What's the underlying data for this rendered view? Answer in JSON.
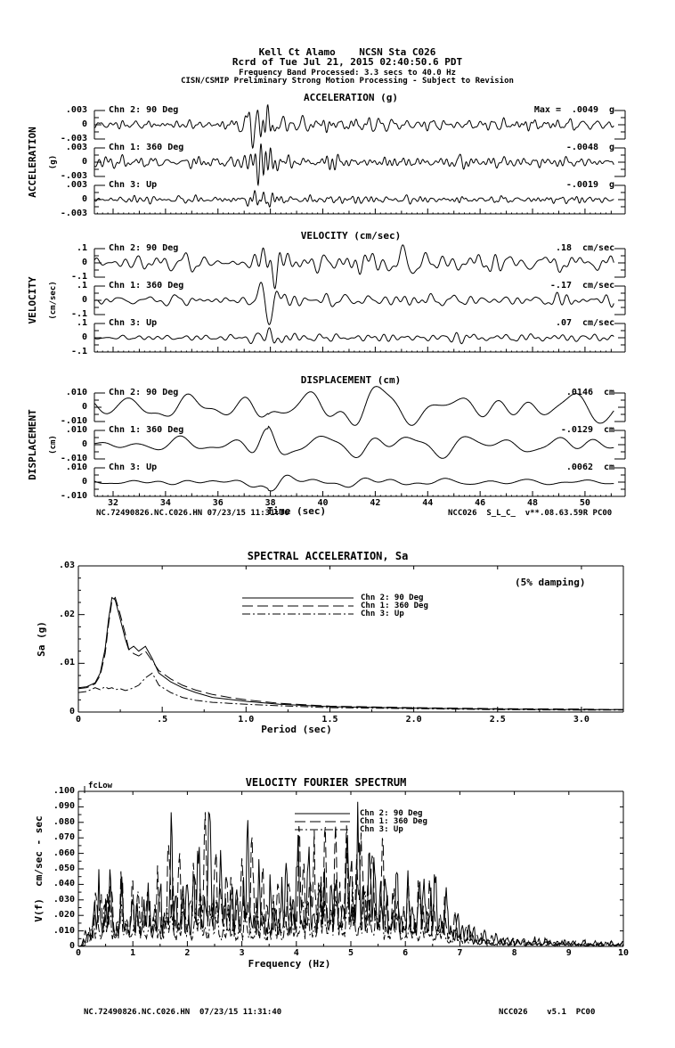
{
  "header": {
    "line1": "Kell Ct Alamo    NCSN Sta C026",
    "line2": "Rcrd of Tue Jul 21, 2015 02:40:50.6 PDT",
    "line3": "Frequency Band Processed: 3.3 secs to 40.0 Hz",
    "line4": "CISN/CSMIP Preliminary Strong Motion Processing - Subject to Revision"
  },
  "time_series": {
    "panels": [
      {
        "key": "acceleration",
        "title": "ACCELERATION (g)",
        "side_label": "ACCELERATION",
        "side_unit": "(g)",
        "scale_top": ".003",
        "scale_zero": "0",
        "scale_bottom": "-.003",
        "traces": [
          {
            "channel": "Chn 2: 90 Deg",
            "max_prefix": "Max =",
            "value": ".0049",
            "unit": "g"
          },
          {
            "channel": "Chn 1: 360 Deg",
            "value": "-.0048",
            "unit": "g"
          },
          {
            "channel": "Chn 3: Up",
            "value": "-.0019",
            "unit": "g"
          }
        ]
      },
      {
        "key": "velocity",
        "title": "VELOCITY (cm/sec)",
        "side_label": "VELOCITY",
        "side_unit": "(cm/sec)",
        "scale_top": ".1",
        "scale_zero": "0",
        "scale_bottom": "-.1",
        "traces": [
          {
            "channel": "Chn 2: 90 Deg",
            "value": ".18",
            "unit": "cm/sec"
          },
          {
            "channel": "Chn 1: 360 Deg",
            "value": "-.17",
            "unit": "cm/sec"
          },
          {
            "channel": "Chn 3: Up",
            "value": ".07",
            "unit": "cm/sec"
          }
        ]
      },
      {
        "key": "displacement",
        "title": "DISPLACEMENT (cm)",
        "side_label": "DISPLACEMENT",
        "side_unit": "(cm)",
        "scale_top": ".010",
        "scale_zero": "0",
        "scale_bottom": "-.010",
        "traces": [
          {
            "channel": "Chn 2: 90 Deg",
            "value": ".0146",
            "unit": "cm"
          },
          {
            "channel": "Chn 1: 360 Deg",
            "value": "-.0129",
            "unit": "cm"
          },
          {
            "channel": "Chn 3: Up",
            "value": ".0062",
            "unit": "cm"
          }
        ]
      }
    ],
    "time_axis": {
      "tick_labels": [
        "32",
        "34",
        "36",
        "38",
        "40",
        "42",
        "44",
        "46",
        "48",
        "50"
      ],
      "label": "Time (sec)"
    },
    "footer": {
      "left": "NC.72490826.NC.C026.HN 07/23/15 11:31:36",
      "right": "NCC026  S_L_C_  v**.08.63.59R PC00"
    }
  },
  "sa_plot": {
    "title": "SPECTRAL ACCELERATION, Sa",
    "damping_note": "(5% damping)",
    "ylabel": "Sa (g)",
    "xlabel": "Period (sec)",
    "y_tick_labels": [
      "0",
      ".01",
      ".02",
      ".03"
    ],
    "x_tick_labels": [
      "0",
      ".5",
      "1.0",
      "1.5",
      "2.0",
      "2.5",
      "3.0"
    ],
    "legend": [
      {
        "label": "Chn 2: 90 Deg",
        "style": "solid"
      },
      {
        "label": "Chn 1: 360 Deg",
        "style": "long-dash"
      },
      {
        "label": "Chn 3: Up",
        "style": "dash-dot"
      }
    ]
  },
  "fourier_plot": {
    "title": "VELOCITY FOURIER SPECTRUM",
    "ylabel": "V(f)  cm/sec - sec",
    "xlabel": "Frequency (Hz)",
    "fc_label": "fcLow",
    "y_tick_labels": [
      "0",
      ".010",
      ".020",
      ".030",
      ".040",
      ".050",
      ".060",
      ".070",
      ".080",
      ".090",
      ".100"
    ],
    "x_tick_labels": [
      "0",
      "1",
      "2",
      "3",
      "4",
      "5",
      "6",
      "7",
      "8",
      "9",
      "10"
    ],
    "legend": [
      {
        "label": "Chn 2: 90 Deg",
        "style": "solid"
      },
      {
        "label": "Chn 1: 360 Deg",
        "style": "long-dash"
      },
      {
        "label": "Chn 3: Up",
        "style": "dash-dot"
      }
    ]
  },
  "page_footer": {
    "left": "NC.72490826.NC.C026.HN  07/23/15 11:31:40",
    "right": "NCC026    v5.1  PC00"
  },
  "colors": {
    "ink": "#000000",
    "background": "#ffffff"
  },
  "chart_data": [
    {
      "id": "acceleration_traces",
      "type": "line",
      "title": "ACCELERATION (g)",
      "xlabel": "Time (sec)",
      "xlim": [
        31.3,
        51.1
      ],
      "per_trace_ylim": [
        -0.003,
        0.003
      ],
      "units": "g",
      "burst": {
        "center": 37.7,
        "width": 0.55,
        "baseline": 0.3,
        "coda": 0.15,
        "coda_tau": 5
      },
      "freq_band_display_hz": [
        1.2,
        6.5
      ],
      "series": [
        {
          "name": "Chn 2: 90 Deg",
          "peak": 0.0049
        },
        {
          "name": "Chn 1: 360 Deg",
          "peak": -0.0048
        },
        {
          "name": "Chn 3: Up",
          "peak": -0.0019
        }
      ]
    },
    {
      "id": "velocity_traces",
      "type": "line",
      "title": "VELOCITY (cm/sec)",
      "xlabel": "Time (sec)",
      "xlim": [
        31.3,
        51.1
      ],
      "per_trace_ylim": [
        -0.1,
        0.1
      ],
      "units": "cm/sec",
      "burst": {
        "center": 37.8,
        "width": 0.6,
        "baseline": 0.33,
        "coda": 0.2,
        "coda_tau": 6
      },
      "freq_band_display_hz": [
        0.7,
        3.5
      ],
      "series": [
        {
          "name": "Chn 2: 90 Deg",
          "peak": 0.18
        },
        {
          "name": "Chn 1: 360 Deg",
          "peak": -0.17
        },
        {
          "name": "Chn 3: Up",
          "peak": 0.07
        }
      ]
    },
    {
      "id": "displacement_traces",
      "type": "line",
      "title": "DISPLACEMENT (cm)",
      "xlabel": "Time (sec)",
      "xlim": [
        31.3,
        51.1
      ],
      "per_trace_ylim": [
        -0.01,
        0.01
      ],
      "units": "cm",
      "burst": {
        "center": 37.9,
        "width": 0.8,
        "baseline": 0.35,
        "coda": 0.25,
        "coda_tau": 7
      },
      "freq_band_display_hz": [
        0.25,
        1.1
      ],
      "series": [
        {
          "name": "Chn 2: 90 Deg",
          "peak": 0.0146
        },
        {
          "name": "Chn 1: 360 Deg",
          "peak": -0.0129
        },
        {
          "name": "Chn 3: Up",
          "peak": 0.0062
        }
      ]
    },
    {
      "id": "spectral_acceleration",
      "type": "line",
      "title": "SPECTRAL ACCELERATION, Sa",
      "xlabel": "Period (sec)",
      "ylabel": "Sa (g)",
      "xlim": [
        0,
        3.25
      ],
      "ylim": [
        0,
        0.03
      ],
      "damping": "5%",
      "x": [
        0,
        0.05,
        0.1,
        0.13,
        0.16,
        0.18,
        0.2,
        0.22,
        0.25,
        0.28,
        0.3,
        0.33,
        0.36,
        0.4,
        0.44,
        0.48,
        0.55,
        0.62,
        0.7,
        0.8,
        0.9,
        1.0,
        1.2,
        1.5,
        2.0,
        2.5,
        3.0,
        3.25
      ],
      "series": [
        {
          "name": "Chn 2: 90 Deg",
          "style": "solid",
          "values": [
            0.005,
            0.0052,
            0.006,
            0.008,
            0.013,
            0.019,
            0.0235,
            0.023,
            0.019,
            0.015,
            0.0128,
            0.0135,
            0.0125,
            0.0135,
            0.011,
            0.008,
            0.0062,
            0.005,
            0.004,
            0.003,
            0.0026,
            0.0022,
            0.0016,
            0.0011,
            0.0008,
            0.0006,
            0.0005,
            0.0005
          ]
        },
        {
          "name": "Chn 1: 360 Deg",
          "style": "long-dash",
          "values": [
            0.0048,
            0.005,
            0.0058,
            0.0075,
            0.012,
            0.018,
            0.0228,
            0.0235,
            0.02,
            0.016,
            0.013,
            0.012,
            0.0115,
            0.0125,
            0.0105,
            0.0085,
            0.0068,
            0.0055,
            0.0045,
            0.0036,
            0.003,
            0.0025,
            0.0018,
            0.0012,
            0.0009,
            0.0007,
            0.0006,
            0.0005
          ]
        },
        {
          "name": "Chn 3: Up",
          "style": "dash-dot",
          "values": [
            0.004,
            0.0042,
            0.005,
            0.0046,
            0.0052,
            0.0048,
            0.005,
            0.0046,
            0.0048,
            0.0044,
            0.0046,
            0.005,
            0.0055,
            0.007,
            0.008,
            0.0055,
            0.004,
            0.003,
            0.0024,
            0.002,
            0.0018,
            0.0016,
            0.0013,
            0.0009,
            0.0007,
            0.0005,
            0.0004,
            0.0004
          ]
        }
      ]
    },
    {
      "id": "velocity_fourier_spectrum",
      "type": "line",
      "title": "VELOCITY FOURIER SPECTRUM",
      "xlabel": "Frequency (Hz)",
      "ylabel": "V(f) cm/sec - sec",
      "xlim": [
        0,
        10
      ],
      "ylim": [
        0,
        0.1
      ],
      "fc_low_hz": 0.3,
      "x_envelope": [
        0,
        0.2,
        0.35,
        0.5,
        0.65,
        0.8,
        1.0,
        1.2,
        1.4,
        1.6,
        1.7,
        1.9,
        2.1,
        2.3,
        2.5,
        2.7,
        2.9,
        3.1,
        3.3,
        3.6,
        3.9,
        4.1,
        4.3,
        4.5,
        4.7,
        4.9,
        5.1,
        5.3,
        5.5,
        5.7,
        5.9,
        6.1,
        6.4,
        6.7,
        7.0,
        7.3,
        7.6,
        8.0,
        8.5,
        9.0,
        9.5,
        10.0
      ],
      "series": [
        {
          "name": "Chn 2: 90 Deg",
          "style": "solid",
          "envelope": [
            0,
            0.03,
            0.048,
            0.05,
            0.042,
            0.038,
            0.035,
            0.04,
            0.036,
            0.05,
            0.07,
            0.045,
            0.055,
            0.08,
            0.083,
            0.05,
            0.04,
            0.072,
            0.045,
            0.04,
            0.055,
            0.065,
            0.06,
            0.055,
            0.05,
            0.065,
            0.085,
            0.07,
            0.06,
            0.05,
            0.04,
            0.045,
            0.055,
            0.035,
            0.02,
            0.012,
            0.008,
            0.006,
            0.005,
            0.004,
            0.004,
            0.003
          ]
        },
        {
          "name": "Chn 1: 360 Deg",
          "style": "long-dash",
          "envelope": [
            0,
            0.035,
            0.052,
            0.055,
            0.048,
            0.042,
            0.038,
            0.045,
            0.04,
            0.06,
            0.083,
            0.05,
            0.06,
            0.082,
            0.08,
            0.055,
            0.045,
            0.075,
            0.05,
            0.042,
            0.06,
            0.08,
            0.07,
            0.065,
            0.06,
            0.075,
            0.08,
            0.085,
            0.065,
            0.055,
            0.045,
            0.04,
            0.045,
            0.03,
            0.018,
            0.01,
            0.007,
            0.005,
            0.004,
            0.004,
            0.003,
            0.003
          ]
        },
        {
          "name": "Chn 3: Up",
          "style": "dash-dot",
          "envelope": [
            0,
            0.015,
            0.028,
            0.032,
            0.028,
            0.025,
            0.027,
            0.03,
            0.026,
            0.03,
            0.032,
            0.026,
            0.028,
            0.032,
            0.03,
            0.025,
            0.022,
            0.028,
            0.024,
            0.022,
            0.028,
            0.035,
            0.032,
            0.038,
            0.034,
            0.036,
            0.04,
            0.036,
            0.034,
            0.028,
            0.024,
            0.02,
            0.022,
            0.015,
            0.01,
            0.007,
            0.005,
            0.004,
            0.003,
            0.003,
            0.002,
            0.002
          ]
        }
      ]
    }
  ]
}
